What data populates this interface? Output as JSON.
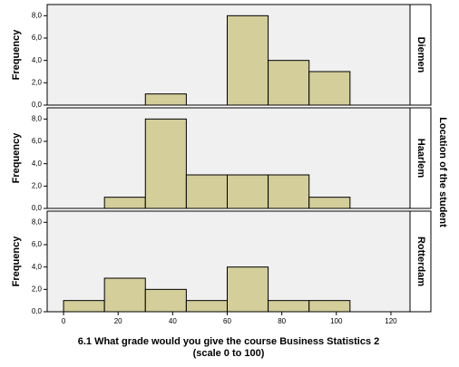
{
  "x_label": [
    "6.1 What grade would you give the course Business Statistics 2",
    "(scale 0 to 100)"
  ],
  "facet_title": "Location of the student",
  "chart_data": [
    {
      "type": "histogram",
      "panel": "Diemen",
      "y_label": "Frequency",
      "color": "#d3ce9a",
      "bins": [
        0,
        15,
        30,
        45,
        60,
        75,
        90,
        105
      ],
      "values": [
        0,
        0,
        1,
        0,
        8,
        4,
        3
      ],
      "xlim": [
        -6,
        127
      ],
      "ylim": [
        0,
        9
      ],
      "yticks": [
        {
          "value": 0,
          "label": "0,0"
        },
        {
          "value": 2,
          "label": "2,0"
        },
        {
          "value": 4,
          "label": "4,0"
        },
        {
          "value": 6,
          "label": "6,0"
        },
        {
          "value": 8,
          "label": "8,0"
        }
      ]
    },
    {
      "type": "histogram",
      "panel": "Haarlem",
      "y_label": "Frequency",
      "color": "#d3ce9a",
      "bins": [
        0,
        15,
        30,
        45,
        60,
        75,
        90,
        105
      ],
      "values": [
        0,
        1,
        8,
        3,
        3,
        3,
        1
      ],
      "xlim": [
        -6,
        127
      ],
      "ylim": [
        0,
        9
      ],
      "yticks": [
        {
          "value": 0,
          "label": "0,0"
        },
        {
          "value": 2,
          "label": "2,0"
        },
        {
          "value": 4,
          "label": "4,0"
        },
        {
          "value": 6,
          "label": "6,0"
        },
        {
          "value": 8,
          "label": "8,0"
        }
      ]
    },
    {
      "type": "histogram",
      "panel": "Rotterdam",
      "y_label": "Frequency",
      "color": "#d3ce9a",
      "bins": [
        0,
        15,
        30,
        45,
        60,
        75,
        90,
        105
      ],
      "values": [
        1,
        3,
        2,
        1,
        4,
        1,
        1
      ],
      "xlim": [
        -6,
        127
      ],
      "ylim": [
        0,
        9
      ],
      "yticks": [
        {
          "value": 0,
          "label": "0,0"
        },
        {
          "value": 2,
          "label": "2,0"
        },
        {
          "value": 4,
          "label": "4,0"
        },
        {
          "value": 6,
          "label": "6,0"
        },
        {
          "value": 8,
          "label": "8,0"
        }
      ],
      "xticks": [
        0,
        20,
        40,
        60,
        80,
        100,
        120
      ]
    }
  ]
}
